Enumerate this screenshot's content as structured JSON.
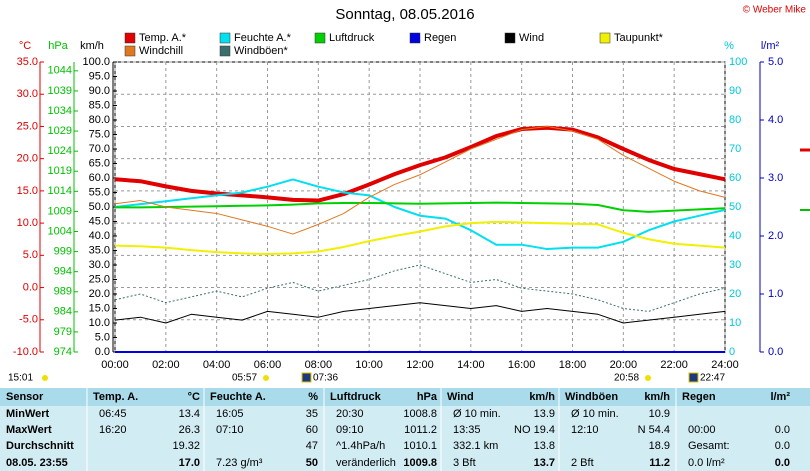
{
  "chart_data": {
    "type": "line",
    "title": "Sonntag, 08.05.2016",
    "credit": "© Weber Mike",
    "x": [
      0,
      1,
      2,
      3,
      4,
      5,
      6,
      7,
      8,
      9,
      10,
      11,
      12,
      13,
      14,
      15,
      16,
      17,
      18,
      19,
      20,
      21,
      22,
      23,
      24
    ],
    "xlim": [
      0,
      24
    ],
    "xticks": [
      {
        "value": 0,
        "label": "00:00"
      },
      {
        "value": 2,
        "label": "02:00"
      },
      {
        "value": 4,
        "label": "04:00"
      },
      {
        "value": 6,
        "label": "06:00"
      },
      {
        "value": 8,
        "label": "08:00"
      },
      {
        "value": 10,
        "label": "10:00"
      },
      {
        "value": 12,
        "label": "12:00"
      },
      {
        "value": 14,
        "label": "14:00"
      },
      {
        "value": 16,
        "label": "16:00"
      },
      {
        "value": 18,
        "label": "18:00"
      },
      {
        "value": 20,
        "label": "20:00"
      },
      {
        "value": 22,
        "label": "22:00"
      },
      {
        "value": 24,
        "label": "24:00"
      }
    ],
    "grid": true,
    "axes": [
      {
        "id": "temp",
        "label": "°C",
        "color": "#e00000",
        "lim": [
          -10,
          35
        ],
        "ticks": [
          {
            "value": 35,
            "label": "35.0"
          },
          {
            "value": 30,
            "label": "30.0"
          },
          {
            "value": 25,
            "label": "25.0"
          },
          {
            "value": 20,
            "label": "20.0"
          },
          {
            "value": 15,
            "label": "15.0"
          },
          {
            "value": 10,
            "label": "10.0"
          },
          {
            "value": 5,
            "label": "5.0"
          },
          {
            "value": 0,
            "label": "0.0"
          },
          {
            "value": -5,
            "label": "-5.0"
          },
          {
            "value": -10,
            "label": "-10.0"
          }
        ]
      },
      {
        "id": "hpa",
        "label": "hPa",
        "color": "#00c000",
        "lim": [
          974,
          1046.2
        ],
        "ticks": [
          1044,
          1039,
          1034,
          1029,
          1024,
          1019,
          1014,
          1009,
          1004,
          999,
          994,
          989,
          984,
          979,
          974
        ]
      },
      {
        "id": "kmh",
        "label": "km/h",
        "color": "#000000",
        "lim": [
          0,
          100
        ],
        "ticks": [
          {
            "value": 100,
            "label": "100.0"
          },
          {
            "value": 95,
            "label": "95.0"
          },
          {
            "value": 90,
            "label": "90.0"
          },
          {
            "value": 85,
            "label": "85.0"
          },
          {
            "value": 80,
            "label": "80.0"
          },
          {
            "value": 75,
            "label": "75.0"
          },
          {
            "value": 70,
            "label": "70.0"
          },
          {
            "value": 65,
            "label": "65.0"
          },
          {
            "value": 60,
            "label": "60.0"
          },
          {
            "value": 55,
            "label": "55.0"
          },
          {
            "value": 50,
            "label": "50.0"
          },
          {
            "value": 45,
            "label": "45.0"
          },
          {
            "value": 40,
            "label": "40.0"
          },
          {
            "value": 35,
            "label": "35.0"
          },
          {
            "value": 30,
            "label": "30.0"
          },
          {
            "value": 25,
            "label": "25.0"
          },
          {
            "value": 20,
            "label": "20.0"
          },
          {
            "value": 15,
            "label": "15.0"
          },
          {
            "value": 10,
            "label": "10.0"
          },
          {
            "value": 5,
            "label": "5.0"
          },
          {
            "value": 0,
            "label": "0.0"
          }
        ]
      },
      {
        "id": "pct",
        "label": "%",
        "color": "#00c8dc",
        "lim": [
          0,
          100
        ],
        "ticks": [
          100,
          90,
          80,
          70,
          60,
          50,
          40,
          30,
          20,
          10,
          0
        ]
      },
      {
        "id": "rain",
        "label": "l/m²",
        "color": "#0000c0",
        "lim": [
          0,
          5
        ],
        "ticks": [
          {
            "value": 5,
            "label": "5.0"
          },
          {
            "value": 4,
            "label": "4.0"
          },
          {
            "value": 3,
            "label": "3.0"
          },
          {
            "value": 2,
            "label": "2.0"
          },
          {
            "value": 1,
            "label": "1.0"
          },
          {
            "value": 0,
            "label": "0.0"
          }
        ]
      }
    ],
    "series": [
      {
        "name": "Temp. A.*",
        "color": "#e00000",
        "axis": "temp",
        "values": [
          16.8,
          16.5,
          15.7,
          15.0,
          14.6,
          14.3,
          14.0,
          13.6,
          13.5,
          14.5,
          16.0,
          17.6,
          19.0,
          20.2,
          21.8,
          23.5,
          24.6,
          24.8,
          24.5,
          23.3,
          21.5,
          19.8,
          18.4,
          17.6,
          16.8
        ]
      },
      {
        "name": "Feuchte A.*",
        "color": "#00e0f0",
        "axis": "pct",
        "values": [
          50,
          51,
          52,
          53,
          54,
          55,
          57,
          59.5,
          57,
          55,
          54,
          50,
          47,
          46,
          42,
          37,
          37,
          35.5,
          36,
          36,
          38,
          42,
          45,
          47,
          49
        ]
      },
      {
        "name": "Luftdruck",
        "color": "#00d000",
        "axis": "hpa",
        "values": [
          1010.0,
          1010.0,
          1010.1,
          1010.2,
          1010.3,
          1010.4,
          1010.5,
          1010.7,
          1011.0,
          1011.1,
          1011.1,
          1011.0,
          1010.9,
          1011.0,
          1011.1,
          1011.2,
          1011.1,
          1011.0,
          1010.9,
          1010.6,
          1009.3,
          1008.9,
          1009.2,
          1009.5,
          1009.8
        ]
      },
      {
        "name": "Regen",
        "color": "#0000e0",
        "axis": "rain",
        "values": [
          0,
          0,
          0,
          0,
          0,
          0,
          0,
          0,
          0,
          0,
          0,
          0,
          0,
          0,
          0,
          0,
          0,
          0,
          0,
          0,
          0,
          0,
          0,
          0,
          0
        ]
      },
      {
        "name": "Wind",
        "color": "#000000",
        "axis": "kmh",
        "values": [
          11,
          12,
          10,
          13,
          12,
          11,
          14,
          13,
          12,
          14,
          15,
          16,
          17,
          16,
          15,
          16,
          14,
          15,
          14,
          13,
          10,
          11,
          12,
          13,
          14
        ]
      },
      {
        "name": "Taupunkt*",
        "color": "#f0f000",
        "axis": "temp",
        "values": [
          6.5,
          6.4,
          6.2,
          5.8,
          5.5,
          5.3,
          5.2,
          5.3,
          5.6,
          6.3,
          7.2,
          8.0,
          8.7,
          9.5,
          10.0,
          10.2,
          10.1,
          10.0,
          9.9,
          9.8,
          8.5,
          7.5,
          6.8,
          6.5,
          6.2
        ]
      },
      {
        "name": "Windchill",
        "color": "#e07820",
        "axis": "temp",
        "values": [
          13.0,
          13.5,
          12.5,
          12.0,
          11.5,
          10.5,
          9.5,
          8.3,
          9.8,
          11.5,
          14.0,
          16.0,
          17.5,
          19.5,
          21.5,
          23.0,
          24.5,
          25.0,
          24.3,
          23.0,
          20.5,
          18.5,
          16.5,
          15.0,
          14.0
        ]
      },
      {
        "name": "Windböen*",
        "color": "#3c6e6e",
        "axis": "kmh",
        "values": [
          18,
          20,
          17,
          19,
          21,
          19,
          22,
          24,
          21,
          23,
          25,
          28,
          30,
          27,
          24,
          25,
          22,
          21,
          20,
          18,
          15,
          14,
          17,
          20,
          22
        ]
      }
    ]
  },
  "sun_moon_times": [
    "15:01",
    "05:57",
    "07:36",
    "20:58",
    "22:47"
  ],
  "table": {
    "sensor": "Sensor",
    "columns": [
      {
        "name": "Temp. A.",
        "unit": "°C"
      },
      {
        "name": "Feuchte A.",
        "unit": "%"
      },
      {
        "name": "Luftdruck",
        "unit": "hPa"
      },
      {
        "name": "Wind",
        "unit": "km/h"
      },
      {
        "name": "Windböen",
        "unit": "km/h"
      },
      {
        "name": "Regen",
        "unit": "l/m²"
      }
    ],
    "rows": [
      {
        "label": "MinWert",
        "cells": [
          [
            "06:45",
            "13.4"
          ],
          [
            "16:05",
            "35"
          ],
          [
            "20:30",
            "1008.8"
          ],
          [
            "Ø 10 min.",
            "13.9"
          ],
          [
            "Ø 10 min.",
            "10.9"
          ],
          [
            null,
            null
          ]
        ]
      },
      {
        "label": "MaxWert",
        "cells": [
          [
            "16:20",
            "26.3"
          ],
          [
            "07:10",
            "60"
          ],
          [
            "09:10",
            "1011.2"
          ],
          [
            "13:35",
            "NO 19.4"
          ],
          [
            "12:10",
            "N 54.4"
          ],
          [
            "00:00",
            "0.0"
          ]
        ]
      },
      {
        "label": "Durchschnitt",
        "cells": [
          [
            null,
            "19.32"
          ],
          [
            null,
            "47"
          ],
          [
            "^1.4hPa/h",
            "1010.1"
          ],
          [
            "332.1 km",
            "13.8"
          ],
          [
            null,
            "18.9"
          ],
          [
            "Gesamt:",
            "0.0"
          ]
        ]
      },
      {
        "label": "08.05. 23:55",
        "cells": [
          [
            null,
            "17.0"
          ],
          [
            "7.23 g/m³",
            "50"
          ],
          [
            "veränderlich",
            "1009.8"
          ],
          [
            "3 Bft",
            "13.7"
          ],
          [
            "2 Bft",
            "11.2"
          ],
          [
            "0.0 l/m²",
            "0.0"
          ]
        ]
      }
    ]
  }
}
